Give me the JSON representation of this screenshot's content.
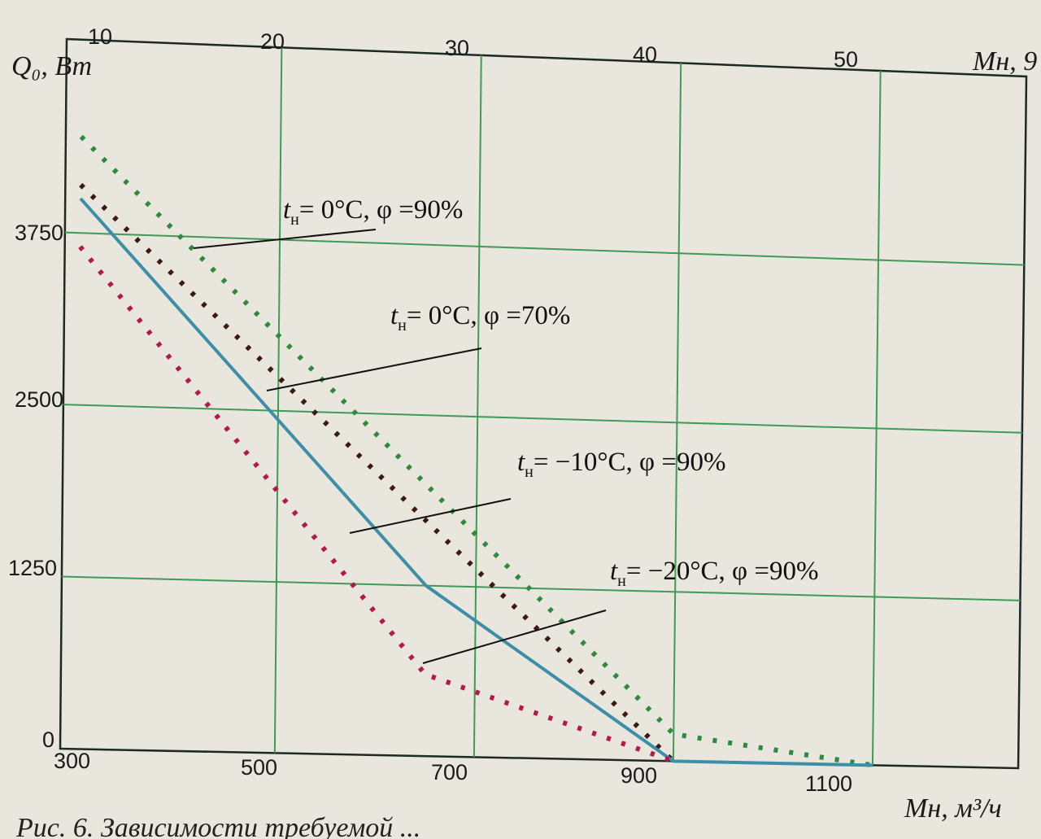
{
  "chart_data": {
    "type": "line",
    "x_bottom": {
      "ticks": [
        "300",
        "500",
        "700",
        "900",
        "1100"
      ],
      "range": [
        300,
        1100
      ]
    },
    "x_top": {
      "ticks": [
        "10",
        "20",
        "30",
        "40",
        "50"
      ]
    },
    "y": {
      "ticks": [
        "0",
        "1250",
        "2500",
        "3750"
      ],
      "range": [
        0,
        5000
      ]
    },
    "ylabel": "Q₀, Вт",
    "xlabel_bottom": "Mн, м³/ч",
    "xlabel_top": "Mн, 9",
    "caption": "Рис. 6. Зависимости требуемой ...",
    "grid": true,
    "series": [
      {
        "name": "tн = 0°C, φ = 90%",
        "color": "#2e8b3e",
        "style": "dotted",
        "points": [
          [
            300,
            4450
          ],
          [
            900,
            200
          ],
          [
            1100,
            0
          ]
        ]
      },
      {
        "name": "tн = 0°C, φ = 70%",
        "color": "#3a1a12",
        "style": "dotted",
        "points": [
          [
            300,
            4100
          ],
          [
            900,
            0
          ]
        ]
      },
      {
        "name": "tн = −10°C, φ = 90%",
        "color": "#3d8fa8",
        "style": "solid",
        "points": [
          [
            300,
            4000
          ],
          [
            650,
            1250
          ],
          [
            900,
            0
          ],
          [
            1100,
            0
          ]
        ]
      },
      {
        "name": "tн = −20°C, φ = 90%",
        "color": "#b5194a",
        "style": "dotted",
        "points": [
          [
            300,
            3650
          ],
          [
            650,
            600
          ],
          [
            900,
            0
          ]
        ]
      }
    ],
    "annotations": [
      {
        "t_main": "t",
        "t_sub": "н",
        "rest": "= 0°C, φ =90%"
      },
      {
        "t_main": "t",
        "t_sub": "н",
        "rest": "= 0°C, φ =70%"
      },
      {
        "t_main": "t",
        "t_sub": "н",
        "rest": "= −10°C, φ =90%"
      },
      {
        "t_main": "t",
        "t_sub": "н",
        "rest": "= −20°C, φ =90%"
      }
    ]
  }
}
